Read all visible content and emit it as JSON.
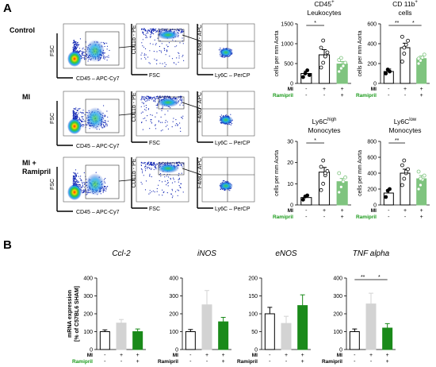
{
  "panel_a": "A",
  "panel_b": "B",
  "rows": [
    {
      "label": [
        "Control"
      ]
    },
    {
      "label": [
        "MI"
      ]
    },
    {
      "label": [
        "MI +",
        "Ramipril"
      ]
    }
  ],
  "flow_axes": {
    "p1_x": "CD45 – APC-Cy7",
    "p1_y": "FSC",
    "p2_x": "FSC",
    "p2_y": "CD11b - PE",
    "p3_x": "Ly6C – PerCP",
    "p3_y": "F4/80 - APC"
  },
  "colors": {
    "sham": "#ffffff",
    "mi_a": "#ffffff",
    "rami": "#7fc47f",
    "mi_b": "#d3d3d3",
    "rami_b": "#1a8a1a",
    "green_text": "#1a9a1a"
  },
  "group_rows": {
    "row1_label": "MI",
    "row2_label": "Ramipril",
    "row1": [
      "-",
      "+",
      "+"
    ],
    "row2": [
      "-",
      "-",
      "+"
    ]
  },
  "chart_data": [
    {
      "type": "bar",
      "title": [
        "CD45+",
        "Leukocytes"
      ],
      "ylabel": "cells per mm Aorta",
      "ylim": [
        0,
        1500
      ],
      "ticks": [
        0,
        500,
        1000,
        1500
      ],
      "categories": [
        "Sham",
        "MI",
        "MI + Ramipril"
      ],
      "values": [
        250,
        720,
        490
      ],
      "errors": [
        60,
        130,
        60
      ],
      "points": [
        [
          160,
          250,
          330,
          210
        ],
        [
          400,
          520,
          680,
          780,
          900,
          1080,
          680
        ],
        [
          300,
          380,
          460,
          520,
          590,
          640,
          440
        ]
      ],
      "sig": [
        {
          "from": 0,
          "to": 1,
          "label": "*",
          "level": 0
        }
      ]
    },
    {
      "type": "bar",
      "title": [
        "CD 11b+",
        "cells"
      ],
      "ylabel": "cells per mm Aorta",
      "ylim": [
        0,
        600
      ],
      "ticks": [
        0,
        200,
        400,
        600
      ],
      "categories": [
        "Sham",
        "MI",
        "MI + Ramipril"
      ],
      "values": [
        120,
        360,
        250
      ],
      "errors": [
        25,
        45,
        25
      ],
      "points": [
        [
          100,
          140,
          120
        ],
        [
          220,
          300,
          390,
          430,
          470,
          360
        ],
        [
          200,
          230,
          260,
          290,
          250
        ]
      ],
      "sig": [
        {
          "from": 0,
          "to": 1,
          "label": "**",
          "level": 0
        },
        {
          "from": 1,
          "to": 2,
          "label": "*",
          "level": 0
        }
      ]
    },
    {
      "type": "bar",
      "title": [
        "Ly6Chigh",
        "Monocytes"
      ],
      "ylabel": "cells per mm Aorta",
      "ylim": [
        0,
        30
      ],
      "ticks": [
        0,
        10,
        20,
        30
      ],
      "categories": [
        "Sham",
        "MI",
        "MI + Ramipril"
      ],
      "values": [
        3.5,
        15.5,
        11
      ],
      "errors": [
        0.8,
        2.2,
        1.5
      ],
      "points": [
        [
          2.5,
          4,
          4.5
        ],
        [
          7,
          10,
          14,
          16,
          18,
          21,
          15
        ],
        [
          6,
          8.5,
          11,
          13,
          15
        ]
      ],
      "sig": [
        {
          "from": 0,
          "to": 1,
          "label": "*",
          "level": 0
        }
      ]
    },
    {
      "type": "bar",
      "title": [
        "Ly6Clow",
        "Monocytes"
      ],
      "ylabel": "cells per mm Aorta",
      "ylim": [
        0,
        800
      ],
      "ticks": [
        0,
        200,
        400,
        600,
        800
      ],
      "categories": [
        "Sham",
        "MI",
        "MI + Ramipril"
      ],
      "values": [
        150,
        400,
        330
      ],
      "errors": [
        40,
        50,
        40
      ],
      "points": [
        [
          100,
          180,
          200
        ],
        [
          250,
          330,
          400,
          450,
          500,
          560,
          420
        ],
        [
          200,
          250,
          320,
          370,
          420,
          330
        ]
      ],
      "sig": [
        {
          "from": 0,
          "to": 1,
          "label": "**",
          "level": 0
        }
      ]
    },
    {
      "type": "bar",
      "title": "Ccl-2",
      "ylabel": [
        "mRNA expression",
        "[% of C57BL6 SHAM]"
      ],
      "ylim": [
        0,
        400
      ],
      "ticks": [
        0,
        100,
        200,
        300,
        400
      ],
      "categories": [
        "Sham",
        "MI",
        "MI + Ramipril"
      ],
      "values": [
        100,
        148,
        100
      ],
      "errors": [
        10,
        20,
        15
      ],
      "sig": []
    },
    {
      "type": "bar",
      "title": "iNOS",
      "ylabel": "",
      "ylim": [
        0,
        400
      ],
      "ticks": [
        0,
        100,
        200,
        300,
        400
      ],
      "categories": [
        "Sham",
        "MI",
        "MI + Ramipril"
      ],
      "values": [
        100,
        250,
        155
      ],
      "errors": [
        12,
        80,
        25
      ],
      "sig": []
    },
    {
      "type": "bar",
      "title": "eNOS",
      "ylabel": "",
      "ylim": [
        0,
        200
      ],
      "ticks": [
        0,
        50,
        100,
        150,
        200
      ],
      "categories": [
        "Sham",
        "MI",
        "MI + Ramipril"
      ],
      "values": [
        100,
        73,
        123
      ],
      "errors": [
        18,
        20,
        30
      ],
      "sig": []
    },
    {
      "type": "bar",
      "title": "TNF alpha",
      "ylabel": "",
      "ylim": [
        0,
        400
      ],
      "ticks": [
        0,
        100,
        200,
        300,
        400
      ],
      "categories": [
        "Sham",
        "MI",
        "MI + Ramipril"
      ],
      "values": [
        100,
        255,
        120
      ],
      "errors": [
        15,
        60,
        25
      ],
      "sig": [
        {
          "from": 0,
          "to": 1,
          "label": "**",
          "level": 0
        },
        {
          "from": 1,
          "to": 2,
          "label": "*",
          "level": 0
        }
      ]
    }
  ]
}
